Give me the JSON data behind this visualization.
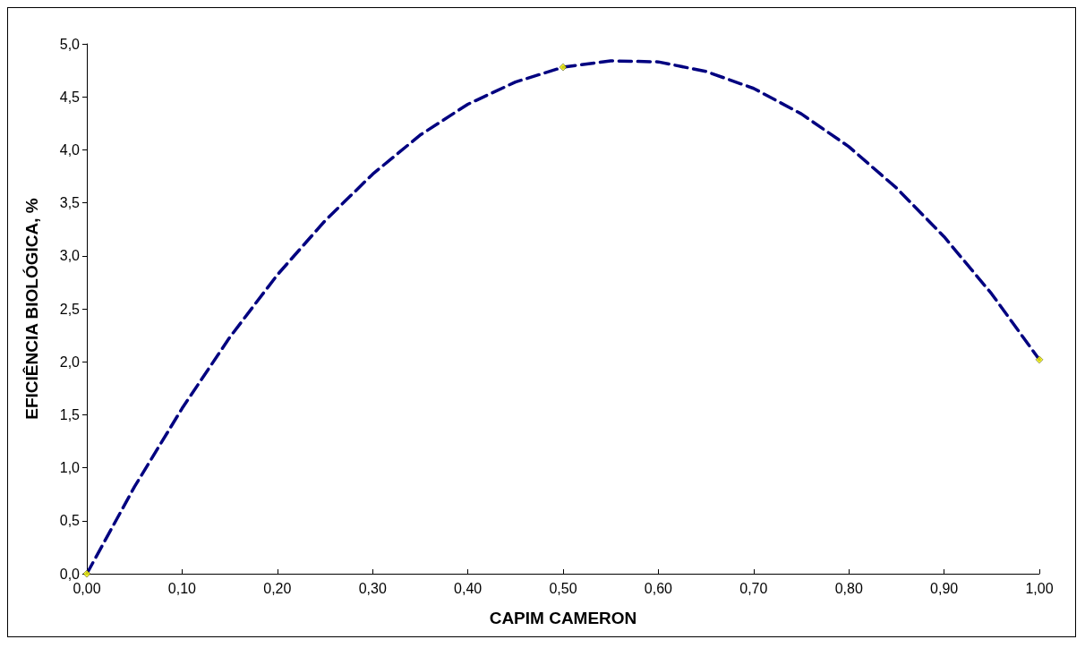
{
  "chart_data": {
    "type": "scatter",
    "xlabel": "CAPIM CAMERON",
    "ylabel": "EFICIÊNCIA BIOLÓGICA, %",
    "xlim": [
      0,
      1
    ],
    "ylim": [
      0,
      5
    ],
    "xticks": [
      {
        "value": 0,
        "label": "0,00"
      },
      {
        "value": 0.1,
        "label": "0,10"
      },
      {
        "value": 0.2,
        "label": "0,20"
      },
      {
        "value": 0.3,
        "label": "0,30"
      },
      {
        "value": 0.4,
        "label": "0,40"
      },
      {
        "value": 0.5,
        "label": "0,50"
      },
      {
        "value": 0.6,
        "label": "0,60"
      },
      {
        "value": 0.7,
        "label": "0,70"
      },
      {
        "value": 0.8,
        "label": "0,80"
      },
      {
        "value": 0.9,
        "label": "0,90"
      },
      {
        "value": 1,
        "label": "1,00"
      }
    ],
    "yticks": [
      {
        "value": 0,
        "label": "0,0"
      },
      {
        "value": 0.5,
        "label": "0,5"
      },
      {
        "value": 1,
        "label": "1,0"
      },
      {
        "value": 1.5,
        "label": "1,5"
      },
      {
        "value": 2,
        "label": "2,0"
      },
      {
        "value": 2.5,
        "label": "2,5"
      },
      {
        "value": 3,
        "label": "3,0"
      },
      {
        "value": 3.5,
        "label": "3,5"
      },
      {
        "value": 4,
        "label": "4,0"
      },
      {
        "value": 4.5,
        "label": "4,5"
      },
      {
        "value": 5,
        "label": "5,0"
      }
    ],
    "grid": false,
    "series": [
      {
        "type": "line",
        "color": "#000080",
        "line_style": "dashed",
        "marker": "none",
        "x": [
          0,
          0.05,
          0.1,
          0.15,
          0.2,
          0.25,
          0.3,
          0.35,
          0.4,
          0.45,
          0.5,
          0.55,
          0.6,
          0.65,
          0.7,
          0.75,
          0.8,
          0.85,
          0.9,
          0.95,
          1
        ],
        "values": [
          0,
          0.82,
          1.56,
          2.23,
          2.82,
          3.33,
          3.77,
          4.14,
          4.43,
          4.64,
          4.78,
          4.84,
          4.83,
          4.74,
          4.58,
          4.34,
          4.03,
          3.64,
          3.18,
          2.64,
          2.02
        ]
      },
      {
        "color": "#ffff00",
        "marker": "diamond",
        "x": [
          0,
          0.5,
          1
        ],
        "values": [
          0,
          4.78,
          2.02
        ]
      }
    ]
  }
}
